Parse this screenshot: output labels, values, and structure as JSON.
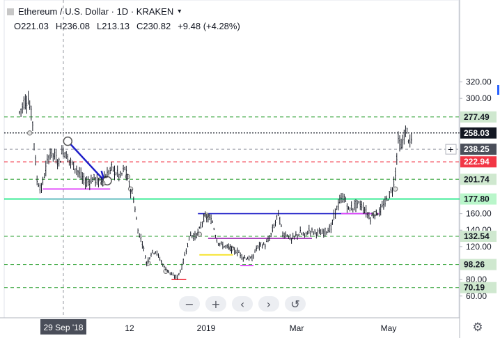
{
  "header": {
    "symbol": "Ethereum / U.S. Dollar · 1D · KRAKEN",
    "open": "O221.03",
    "high": "H236.08",
    "low": "L213.13",
    "close": "C230.82",
    "change": "+9.48 (+4.28%)"
  },
  "crosshair": {
    "price_label": "238.25",
    "date_label": "29 Sep '18"
  },
  "nav": {
    "zoom_out": "−",
    "zoom_in": "+",
    "back": "‹",
    "forward": "›",
    "reset": "↺"
  },
  "colors": {
    "candle": "#131722",
    "support_green": "#4caf50",
    "bright_green": "#00e676",
    "red": "#f23645",
    "blue": "#1e1ec8",
    "magenta": "#e040fb",
    "purple": "#9c27b0",
    "yellow": "#f5e11a",
    "steel_blue": "#5b8bd0"
  },
  "chart_data": {
    "type": "candlestick",
    "title": "Ethereum / U.S. Dollar · 1D · KRAKEN",
    "y_ticks": [
      "320.00",
      "300.00",
      "160.00",
      "140.00",
      "120.00",
      "80.00",
      "60.00"
    ],
    "x_ticks": [
      "12",
      "2019",
      "Mar",
      "May"
    ],
    "horizontal_levels": [
      {
        "value": 277.49,
        "label": "277.49",
        "style": "dashed",
        "color": "#4caf50"
      },
      {
        "value": 258.03,
        "label": "258.03",
        "style": "dotted",
        "color": "#131722"
      },
      {
        "value": 222.94,
        "label": "222.94",
        "style": "dashed",
        "color": "#f23645"
      },
      {
        "value": 201.74,
        "label": "201.74",
        "style": "dashed",
        "color": "#4caf50"
      },
      {
        "value": 177.8,
        "label": "177.80",
        "style": "solid",
        "color": "#00e676"
      },
      {
        "value": 132.54,
        "label": "132.54",
        "style": "dashed",
        "color": "#4caf50"
      },
      {
        "value": 98.26,
        "label": "98.26",
        "style": "dashed",
        "color": "#4caf50"
      },
      {
        "value": 70.19,
        "label": "70.19",
        "style": "dashed",
        "color": "#4caf50"
      }
    ],
    "close_path": [
      [
        "2018-08-30",
        283
      ],
      [
        "2018-09-02",
        295
      ],
      [
        "2018-09-05",
        300
      ],
      [
        "2018-09-08",
        270
      ],
      [
        "2018-09-11",
        200
      ],
      [
        "2018-09-14",
        190
      ],
      [
        "2018-09-17",
        215
      ],
      [
        "2018-09-20",
        235
      ],
      [
        "2018-09-23",
        230
      ],
      [
        "2018-09-26",
        222
      ],
      [
        "2018-09-29",
        238
      ],
      [
        "2018-10-02",
        228
      ],
      [
        "2018-10-05",
        220
      ],
      [
        "2018-10-08",
        215
      ],
      [
        "2018-10-11",
        205
      ],
      [
        "2018-10-14",
        198
      ],
      [
        "2018-10-17",
        200
      ],
      [
        "2018-10-20",
        203
      ],
      [
        "2018-10-23",
        198
      ],
      [
        "2018-10-26",
        203
      ],
      [
        "2018-10-29",
        208
      ],
      [
        "2018-11-01",
        215
      ],
      [
        "2018-11-04",
        210
      ],
      [
        "2018-11-07",
        205
      ],
      [
        "2018-11-10",
        215
      ],
      [
        "2018-11-13",
        195
      ],
      [
        "2018-11-16",
        178
      ],
      [
        "2018-11-19",
        140
      ],
      [
        "2018-11-22",
        125
      ],
      [
        "2018-11-25",
        100
      ],
      [
        "2018-11-28",
        112
      ],
      [
        "2018-12-01",
        115
      ],
      [
        "2018-12-04",
        105
      ],
      [
        "2018-12-07",
        95
      ],
      [
        "2018-12-10",
        90
      ],
      [
        "2018-12-13",
        84
      ],
      [
        "2018-12-16",
        83
      ],
      [
        "2018-12-19",
        95
      ],
      [
        "2018-12-22",
        117
      ],
      [
        "2018-12-25",
        135
      ],
      [
        "2018-12-28",
        132
      ],
      [
        "2018-12-31",
        140
      ],
      [
        "2019-01-03",
        155
      ],
      [
        "2019-01-06",
        155
      ],
      [
        "2019-01-09",
        150
      ],
      [
        "2019-01-12",
        128
      ],
      [
        "2019-01-15",
        122
      ],
      [
        "2019-01-18",
        120
      ],
      [
        "2019-01-21",
        118
      ],
      [
        "2019-01-24",
        115
      ],
      [
        "2019-01-27",
        113
      ],
      [
        "2019-01-30",
        107
      ],
      [
        "2019-02-02",
        106
      ],
      [
        "2019-02-05",
        105
      ],
      [
        "2019-02-08",
        118
      ],
      [
        "2019-02-11",
        122
      ],
      [
        "2019-02-14",
        122
      ],
      [
        "2019-02-17",
        130
      ],
      [
        "2019-02-20",
        145
      ],
      [
        "2019-02-23",
        160
      ],
      [
        "2019-02-26",
        135
      ],
      [
        "2019-03-01",
        135
      ],
      [
        "2019-03-04",
        128
      ],
      [
        "2019-03-07",
        133
      ],
      [
        "2019-03-10",
        137
      ],
      [
        "2019-03-13",
        133
      ],
      [
        "2019-03-16",
        140
      ],
      [
        "2019-03-19",
        138
      ],
      [
        "2019-03-22",
        137
      ],
      [
        "2019-03-25",
        136
      ],
      [
        "2019-03-28",
        140
      ],
      [
        "2019-03-31",
        142
      ],
      [
        "2019-04-03",
        163
      ],
      [
        "2019-04-06",
        175
      ],
      [
        "2019-04-09",
        180
      ],
      [
        "2019-04-12",
        165
      ],
      [
        "2019-04-15",
        168
      ],
      [
        "2019-04-18",
        172
      ],
      [
        "2019-04-21",
        170
      ],
      [
        "2019-04-24",
        162
      ],
      [
        "2019-04-27",
        155
      ],
      [
        "2019-04-30",
        160
      ],
      [
        "2019-05-03",
        162
      ],
      [
        "2019-05-06",
        170
      ],
      [
        "2019-05-09",
        180
      ],
      [
        "2019-05-12",
        190
      ],
      [
        "2019-05-14",
        210
      ],
      [
        "2019-05-16",
        250
      ],
      [
        "2019-05-18",
        240
      ],
      [
        "2019-05-20",
        255
      ],
      [
        "2019-05-22",
        260
      ],
      [
        "2019-05-24",
        245
      ],
      [
        "2019-05-26",
        252
      ]
    ]
  }
}
